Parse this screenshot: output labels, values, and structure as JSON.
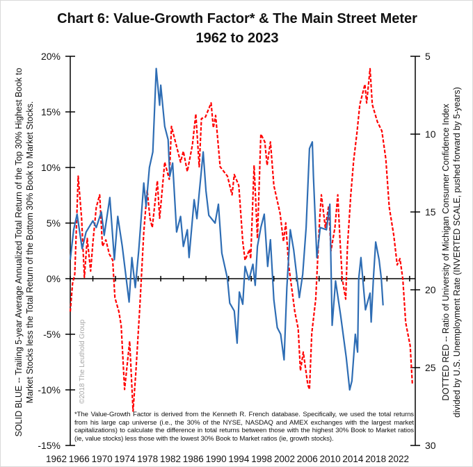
{
  "chart_data": {
    "type": "line",
    "title_line1": "Chart 6: Value-Growth Factor* & The Main Street Meter",
    "title_line2": "1962 to 2023",
    "ylabel_left_line1": "SOLID BLUE -- Trailing 5-year Average Annualized Total Return of the Top 30% Highest Book to",
    "ylabel_left_line2": "Market Stocks less the Total Return of the Bottom 30% Book to Market Stocks.",
    "ylabel_right_line1": "DOTTED RED -- Ratio of University of Michigan Consumer Confidence Index",
    "ylabel_right_line2": "divided by U.S. Unemployment Rate (INVERTED SCALE, pushed forward by 5-years)",
    "xlim": [
      1962,
      2023
    ],
    "x_tick_labels": [
      "1962",
      "1966",
      "1970",
      "1974",
      "1978",
      "1982",
      "1986",
      "1990",
      "1994",
      "1998",
      "2002",
      "2006",
      "2010",
      "2014",
      "2018",
      "2022"
    ],
    "y_left": {
      "range": [
        -15,
        20
      ],
      "tick_labels": [
        "20%",
        "15%",
        "10%",
        "5%",
        "0%",
        "-5%",
        "-10%",
        "-15%"
      ],
      "ticks": [
        20,
        15,
        10,
        5,
        0,
        -5,
        -10,
        -15
      ]
    },
    "y_right": {
      "range": [
        5,
        30
      ],
      "inverted": true,
      "tick_labels": [
        "5",
        "10",
        "15",
        "20",
        "25",
        "30"
      ],
      "ticks": [
        5,
        10,
        15,
        20,
        25,
        30
      ]
    },
    "series": [
      {
        "name": "Value-Growth Factor (solid blue)",
        "axis": "left",
        "color": "#2e6db4",
        "style": "solid",
        "x": [
          1962,
          1962.6,
          1963.2,
          1964.1,
          1964.8,
          1966,
          1966.6,
          1967.5,
          1968,
          1969,
          1969.8,
          1970.4,
          1971.2,
          1972.4,
          1972.9,
          1973.5,
          1974.1,
          1975,
          1975.4,
          1976,
          1976.6,
          1977.2,
          1977.8,
          1978,
          1978.7,
          1979.3,
          1979.6,
          1980.1,
          1980.8,
          1981.5,
          1982,
          1982.7,
          1983,
          1983.9,
          1984.4,
          1984.8,
          1985.5,
          1986,
          1986.5,
          1987.6,
          1988.2,
          1988.8,
          1989.8,
          1990.2,
          1991,
          1991.5,
          1991.9,
          1992.5,
          1992.9,
          1993.6,
          1994.3,
          1994.7,
          1995.1,
          1995.7,
          1996.3,
          1996.9,
          1997.4,
          1998,
          1998.6,
          1999.2,
          1999.8,
          2000.3,
          2000.9,
          2001.5,
          2002.1,
          2002.5,
          2003.1,
          2003.7,
          2004.3,
          2004.8,
          2005,
          2005.6,
          2006.2,
          2007.3,
          2007.9,
          2008.3,
          2008.9,
          2009.8,
          2010.8,
          2011.4,
          2011.8,
          2012.4,
          2012.8,
          2013,
          2013.4,
          2014.2,
          2015,
          2015.2,
          2015.6,
          2016,
          2016.6,
          2017,
          2017.3
        ],
        "y": [
          1.7,
          4.4,
          5.8,
          2.7,
          4.2,
          5.2,
          4.6,
          6.0,
          3.9,
          7.3,
          1.7,
          5.6,
          2.9,
          -2.1,
          1.9,
          -0.8,
          2.5,
          8.6,
          6.5,
          10,
          11.4,
          18.9,
          15.6,
          17.4,
          13.7,
          12.5,
          9.2,
          10.4,
          4.2,
          5.6,
          2.9,
          4.4,
          1.9,
          7.1,
          5.4,
          7.7,
          11.4,
          7.9,
          5.7,
          5,
          6.7,
          2.3,
          0,
          -2.2,
          -2.9,
          -5.8,
          -1.2,
          -2.3,
          1.1,
          -0.1,
          1.3,
          -0.6,
          2.9,
          4.6,
          5.8,
          1.1,
          3.5,
          -1.9,
          -4.4,
          -5,
          -7.3,
          -0.8,
          4.4,
          2.6,
          0,
          -1.7,
          0.4,
          4.6,
          11.7,
          12.3,
          9.2,
          1.9,
          4.6,
          4.4,
          6.7,
          -4.2,
          -0.2,
          -3.3,
          -7.1,
          -10,
          -9.2,
          -5,
          -6.6,
          0,
          1.9,
          -2.8,
          -1.3,
          -3.9,
          0,
          3.3,
          1.7,
          0,
          -2.4
        ]
      },
      {
        "name": "Main Street Meter (dotted red)",
        "axis": "right",
        "color": "#ff0000",
        "style": "dashed",
        "x": [
          1962,
          1962.4,
          1962.8,
          1963.4,
          1964,
          1964.5,
          1965,
          1965.6,
          1966,
          1966.6,
          1967.2,
          1967.7,
          1968.3,
          1968.9,
          1969.5,
          1969.9,
          1970.6,
          1971,
          1971.6,
          1972.5,
          1973.1,
          1973.6,
          1974.3,
          1975,
          1975.6,
          1976.1,
          1976.5,
          1977.4,
          1977.8,
          1978.7,
          1979.5,
          1979.9,
          1980.8,
          1981.5,
          1982,
          1982.7,
          1983.6,
          1984.2,
          1984.8,
          1985.2,
          1985.9,
          1986.9,
          1987.3,
          1987.7,
          1988.5,
          1989.8,
          1990.6,
          1991,
          1991.8,
          1992.5,
          1992.9,
          1993.7,
          1993.9,
          1994.5,
          1995.1,
          1995.7,
          1996.4,
          1996.8,
          1997.4,
          1998,
          1999.1,
          1999.7,
          2000.1,
          2000.6,
          2001.3,
          2001.7,
          2002.3,
          2002.7,
          2003.2,
          2004,
          2004.3,
          2004.7,
          2005.4,
          2006.1,
          2006.4,
          2007.1,
          2007.7,
          2008.1,
          2008.8,
          2009.3,
          2009.7,
          2010.1,
          2010.7,
          2011,
          2011.6,
          2012.1,
          2012.7,
          2013.2,
          2014.1,
          2014.4,
          2015,
          2015.4,
          2016.3,
          2017.1,
          2017.8,
          2018.4,
          2019.2,
          2019.8,
          2020.3,
          2020.8,
          2021.3,
          2022.1,
          2022.5
        ],
        "y": [
          21.4,
          19.6,
          19,
          12.7,
          15.4,
          19.2,
          16.7,
          18.8,
          17,
          14.7,
          13.9,
          17.2,
          16.8,
          17.7,
          18.1,
          20.5,
          21.4,
          22.3,
          26.4,
          23.3,
          27.8,
          25.3,
          21.1,
          16.3,
          13.6,
          15.4,
          16,
          13,
          15.4,
          11.8,
          12.9,
          9.5,
          10.8,
          11.8,
          11.1,
          12.4,
          10.7,
          8.7,
          12.1,
          9,
          8.9,
          8,
          9.6,
          8.8,
          12.1,
          12.7,
          13.9,
          12.6,
          13.3,
          16.9,
          18.1,
          17.4,
          18,
          12,
          16.7,
          10,
          10.5,
          12,
          10.5,
          13.3,
          15.1,
          16.9,
          15.7,
          18.4,
          20.3,
          21.4,
          22.5,
          25.2,
          24,
          26.1,
          26.4,
          22.8,
          20.6,
          15.4,
          13.9,
          16,
          14.6,
          17.5,
          16,
          13.9,
          16.9,
          19.3,
          20.6,
          17.3,
          13.9,
          11.7,
          9.9,
          8.1,
          6.8,
          8,
          5.8,
          8.1,
          9.2,
          9.8,
          11.6,
          14.7,
          16.5,
          18.4,
          18,
          19.3,
          22.1,
          23.6,
          26.1
        ]
      }
    ],
    "watermark": "©2018 The Leuthold Group",
    "footnote": "*The Value-Growth Factor is derived from the Kenneth R. French database. Specifically, we used the total returns from his large cap universe (i.e., the 30% of the NYSE, NASDAQ and AMEX exchanges with the largest market capitalizations) to calculate the difference in total returns between those with the highest 30% Book to Market ratios (ie, value stocks) less those with the lowest 30% Book to Market ratios (ie, growth stocks)."
  }
}
